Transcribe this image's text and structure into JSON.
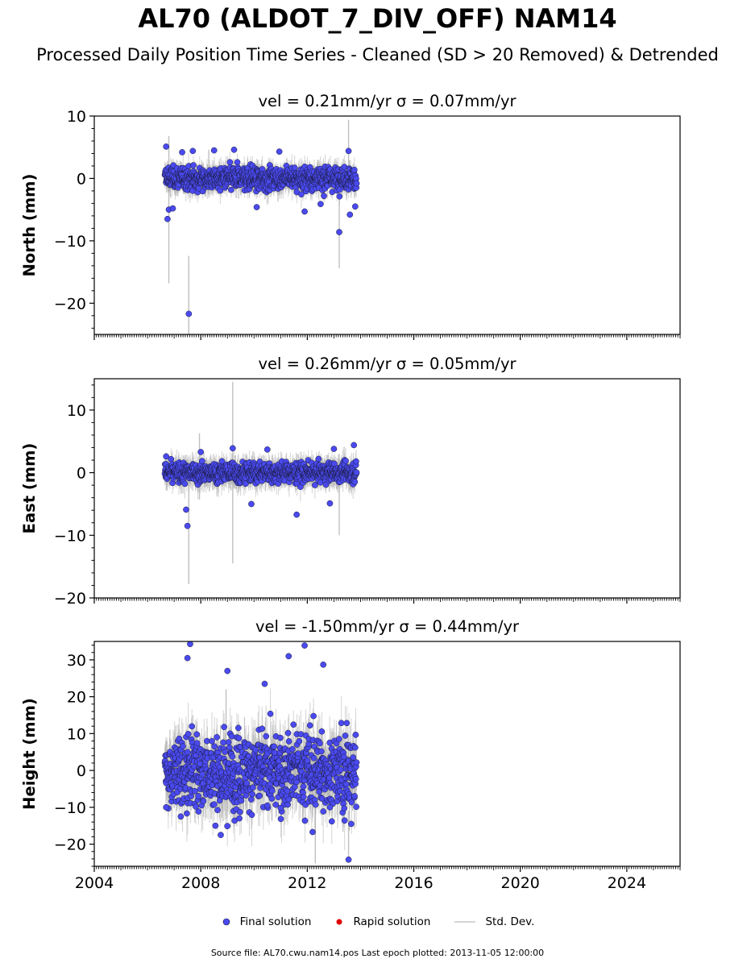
{
  "figure": {
    "title": "AL70 (ALDOT_7_DIV_OFF) NAM14",
    "subtitle": "Processed Daily Position Time Series - Cleaned (SD > 20 Removed) & Detrended",
    "footer": "Source file: AL70.cwu.nam14.pos  Last epoch plotted: 2013-11-05 12:00:00"
  },
  "legend": {
    "final_label": "Final solution",
    "rapid_label": "Rapid solution",
    "std_label": "Std. Dev."
  },
  "colors": {
    "final": "#4a4af0",
    "final_edge": "#1a1a3a",
    "rapid": "#e00000",
    "stddev": "#b0b0b0"
  },
  "chart_data": [
    {
      "type": "scatter",
      "panel_title": "vel = 0.21mm/yr   σ = 0.07mm/yr",
      "ylabel": "North (mm)",
      "xlim": [
        2004.0,
        2026.0
      ],
      "ylim": [
        -25,
        10
      ],
      "yticks": [
        -20,
        -10,
        0,
        10
      ],
      "xticks": [
        2004,
        2008,
        2012,
        2016,
        2020,
        2024
      ],
      "data_span": [
        2006.65,
        2013.85
      ],
      "typical_spread_mm": 1.5,
      "typical_sigma_mm": 1.5,
      "points": [
        {
          "x": 2006.7,
          "y": 5.1
        },
        {
          "x": 2006.75,
          "y": -6.5
        },
        {
          "x": 2006.8,
          "y": -5.0
        },
        {
          "x": 2006.95,
          "y": -4.8
        },
        {
          "x": 2007.3,
          "y": 4.2
        },
        {
          "x": 2007.55,
          "y": -21.7
        },
        {
          "x": 2007.7,
          "y": 4.4
        },
        {
          "x": 2008.5,
          "y": 4.5
        },
        {
          "x": 2009.25,
          "y": 4.6
        },
        {
          "x": 2010.1,
          "y": -4.6
        },
        {
          "x": 2010.95,
          "y": 4.3
        },
        {
          "x": 2011.9,
          "y": -5.3
        },
        {
          "x": 2012.5,
          "y": -4.1
        },
        {
          "x": 2013.2,
          "y": -8.6
        },
        {
          "x": 2013.55,
          "y": 4.4
        },
        {
          "x": 2013.6,
          "y": -5.8
        },
        {
          "x": 2013.8,
          "y": -4.5
        }
      ],
      "errorbars": [
        {
          "x": 2006.8,
          "y": -5.0,
          "sigma": 11.8
        },
        {
          "x": 2007.55,
          "y": -21.7,
          "sigma": 9.3
        },
        {
          "x": 2013.2,
          "y": -8.6,
          "sigma": 5.8
        },
        {
          "x": 2013.55,
          "y": 4.4,
          "sigma": 5.0
        },
        {
          "x": 2008.3,
          "y": 1.0,
          "sigma": 3.6
        }
      ]
    },
    {
      "type": "scatter",
      "panel_title": "vel = 0.26mm/yr   σ = 0.05mm/yr",
      "ylabel": "East (mm)",
      "xlim": [
        2004.0,
        2026.0
      ],
      "ylim": [
        -20,
        15
      ],
      "yticks": [
        -20,
        -10,
        0,
        10
      ],
      "xticks": [
        2004,
        2008,
        2012,
        2016,
        2020,
        2024
      ],
      "data_span": [
        2006.65,
        2013.85
      ],
      "typical_spread_mm": 1.3,
      "typical_sigma_mm": 1.6,
      "points": [
        {
          "x": 2007.5,
          "y": -8.5
        },
        {
          "x": 2007.45,
          "y": -5.9
        },
        {
          "x": 2009.2,
          "y": 3.9
        },
        {
          "x": 2011.6,
          "y": -6.7
        },
        {
          "x": 2013.0,
          "y": 3.8
        },
        {
          "x": 2013.75,
          "y": 4.4
        },
        {
          "x": 2008.0,
          "y": 3.3
        },
        {
          "x": 2009.9,
          "y": -5.0
        },
        {
          "x": 2012.85,
          "y": -4.9
        },
        {
          "x": 2010.5,
          "y": 3.7
        },
        {
          "x": 2006.7,
          "y": 2.6
        }
      ],
      "errorbars": [
        {
          "x": 2009.2,
          "y": 0.0,
          "sigma": 14.5
        },
        {
          "x": 2007.55,
          "y": -8.5,
          "sigma": 9.3
        },
        {
          "x": 2013.2,
          "y": -3.5,
          "sigma": 6.5
        },
        {
          "x": 2007.95,
          "y": 1.0,
          "sigma": 5.3
        }
      ]
    },
    {
      "type": "scatter",
      "panel_title": "vel = -1.50mm/yr   σ = 0.44mm/yr",
      "ylabel": "Height (mm)",
      "xlim": [
        2004.0,
        2026.0
      ],
      "ylim": [
        -26,
        35
      ],
      "yticks": [
        -20,
        -10,
        0,
        10,
        20,
        30
      ],
      "xticks": [
        2004,
        2008,
        2012,
        2016,
        2020,
        2024
      ],
      "data_span": [
        2006.65,
        2013.85
      ],
      "typical_spread_mm": 8.5,
      "typical_sigma_mm": 6.0,
      "points": [
        {
          "x": 2007.6,
          "y": 34.3
        },
        {
          "x": 2011.9,
          "y": 33.9
        },
        {
          "x": 2007.5,
          "y": 30.5
        },
        {
          "x": 2006.7,
          "y": -10.0
        },
        {
          "x": 2007.25,
          "y": -12.5
        },
        {
          "x": 2008.55,
          "y": -15.0
        },
        {
          "x": 2008.75,
          "y": -17.5
        },
        {
          "x": 2009.45,
          "y": -13.0
        },
        {
          "x": 2012.2,
          "y": -16.7
        },
        {
          "x": 2013.55,
          "y": -24.2
        },
        {
          "x": 2013.65,
          "y": -14.5
        },
        {
          "x": 2011.3,
          "y": 31.0
        },
        {
          "x": 2009.0,
          "y": 27.0
        },
        {
          "x": 2010.4,
          "y": 23.5
        },
        {
          "x": 2012.6,
          "y": 28.7
        },
        {
          "x": 2012.85,
          "y": -10.0
        },
        {
          "x": 2010.5,
          "y": -9.5
        },
        {
          "x": 2011.0,
          "y": -10.2
        }
      ],
      "errorbars": [
        {
          "x": 2008.95,
          "y": 7.0,
          "sigma": 15.0
        },
        {
          "x": 2012.3,
          "y": -16.7,
          "sigma": 8.5
        },
        {
          "x": 2013.55,
          "y": -18.0,
          "sigma": 7.0
        }
      ]
    }
  ],
  "axes": {
    "x_tick_labels": [
      "2004",
      "2008",
      "2012",
      "2016",
      "2020",
      "2024"
    ]
  }
}
